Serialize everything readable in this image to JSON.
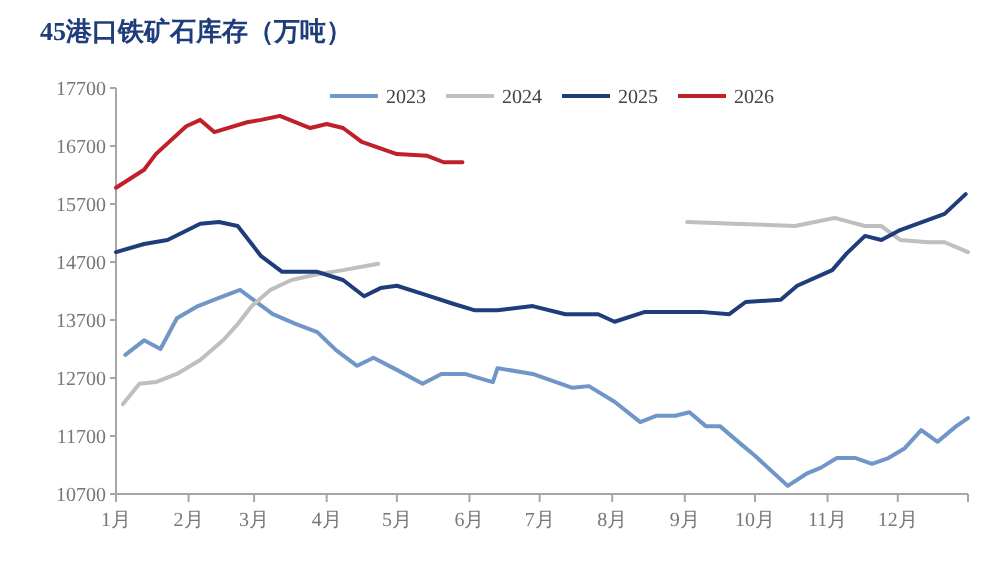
{
  "chart_data": {
    "type": "line",
    "title": "45港口铁矿石库存（万吨）",
    "xlim": [
      "--01-01",
      "--12-31"
    ],
    "xticks": [
      {
        "value": "--01-01",
        "label": "1月"
      },
      {
        "value": "--02-01",
        "label": "2月"
      },
      {
        "value": "--03-01",
        "label": "3月"
      },
      {
        "value": "--04-01",
        "label": "4月"
      },
      {
        "value": "--05-01",
        "label": "5月"
      },
      {
        "value": "--06-01",
        "label": "6月"
      },
      {
        "value": "--07-01",
        "label": "7月"
      },
      {
        "value": "--08-01",
        "label": "8月"
      },
      {
        "value": "--09-01",
        "label": "9月"
      },
      {
        "value": "--10-01",
        "label": "10月"
      },
      {
        "value": "--11-01",
        "label": "11月"
      },
      {
        "value": "--12-01",
        "label": "12月"
      },
      {
        "value": "--12-31",
        "label": null
      }
    ],
    "ylim": [
      10700,
      17700
    ],
    "yticks": [
      10700,
      11700,
      12700,
      13700,
      14700,
      15700,
      16700,
      17700
    ],
    "legend": "top",
    "grid": false,
    "marker": "none",
    "line_style": "solid",
    "series": [
      {
        "name": "2023",
        "color": "#7096c8",
        "x": [
          "--01-05",
          "--01-13",
          "--01-20",
          "--01-27",
          "--02-05",
          "--02-14",
          "--02-23",
          "--03-09",
          "--03-19",
          "--03-28",
          "--04-05",
          "--04-14",
          "--04-21",
          "--05-01",
          "--05-12",
          "--05-20",
          "--05-30",
          "--06-11",
          "--06-13",
          "--06-28",
          "--07-15",
          "--07-22",
          "--08-02",
          "--08-13",
          "--08-20",
          "--08-28",
          "--09-03",
          "--09-10",
          "--09-16",
          "--09-25",
          "--10-01",
          "--10-15",
          "--10-23",
          "--10-29",
          "--11-05",
          "--11-13",
          "--11-20",
          "--11-27",
          "--12-04",
          "--12-11",
          "--12-18",
          "--12-26",
          "--12-31"
        ],
        "values": [
          13100,
          13350,
          13200,
          13730,
          13940,
          14080,
          14220,
          13800,
          13630,
          13490,
          13180,
          12910,
          13050,
          12840,
          12600,
          12770,
          12770,
          12630,
          12870,
          12770,
          12530,
          12560,
          12290,
          11940,
          12050,
          12050,
          12110,
          11870,
          11870,
          11560,
          11360,
          10840,
          11050,
          11150,
          11320,
          11320,
          11220,
          11320,
          11490,
          11800,
          11600,
          11870,
          12010
        ]
      },
      {
        "name": "2024",
        "color": "#bfbfbf",
        "x": [
          "--01-04",
          "--01-11",
          "--01-18",
          "--01-27",
          "--02-06",
          "--02-16",
          "--02-22",
          "--02-28",
          "--03-08",
          "--03-17",
          "--03-28",
          "--04-08",
          "--04-23",
          "--06-28",
          "--09-02",
          "--09-22",
          "--10-18",
          "--11-04",
          "--11-17",
          "--11-24",
          "--12-02",
          "--12-14",
          "--12-21",
          "--12-31"
        ],
        "values": [
          12250,
          12600,
          12630,
          12770,
          13010,
          13360,
          13630,
          13940,
          14220,
          14390,
          14490,
          14560,
          14670,
          null,
          15390,
          15360,
          15320,
          15460,
          15320,
          15320,
          15080,
          15040,
          15040,
          14870
        ]
      },
      {
        "name": "2025",
        "color": "#1f3d7a",
        "x": [
          "--01-01",
          "--01-13",
          "--01-23",
          "--02-06",
          "--02-14",
          "--02-22",
          "--03-04",
          "--03-13",
          "--03-28",
          "--04-08",
          "--04-17",
          "--04-24",
          "--05-01",
          "--05-12",
          "--05-25",
          "--06-03",
          "--06-13",
          "--06-28",
          "--07-12",
          "--07-26",
          "--08-02",
          "--08-15",
          "--09-08",
          "--09-20",
          "--09-27",
          "--10-12",
          "--10-19",
          "--11-03",
          "--11-09",
          "--11-17",
          "--11-24",
          "--12-02",
          "--12-21",
          "--12-30"
        ],
        "values": [
          14870,
          15010,
          15080,
          15360,
          15390,
          15320,
          14800,
          14530,
          14530,
          14390,
          14110,
          14250,
          14290,
          14150,
          13980,
          13870,
          13870,
          13940,
          13800,
          13800,
          13670,
          13840,
          13840,
          13800,
          14010,
          14050,
          14290,
          14560,
          14840,
          15150,
          15080,
          15250,
          15530,
          15870
        ]
      },
      {
        "name": "2026",
        "color": "#c0202a",
        "x": [
          "--01-01",
          "--01-13",
          "--01-18",
          "--01-31",
          "--02-06",
          "--02-12",
          "--02-26",
          "--03-04",
          "--03-12",
          "--03-25",
          "--04-01",
          "--04-08",
          "--04-16",
          "--05-01",
          "--05-14",
          "--05-21",
          "--05-29"
        ],
        "values": [
          15980,
          16290,
          16560,
          17040,
          17150,
          16940,
          17110,
          17150,
          17220,
          17010,
          17080,
          17010,
          16770,
          16560,
          16530,
          16420,
          16420
        ]
      }
    ]
  }
}
